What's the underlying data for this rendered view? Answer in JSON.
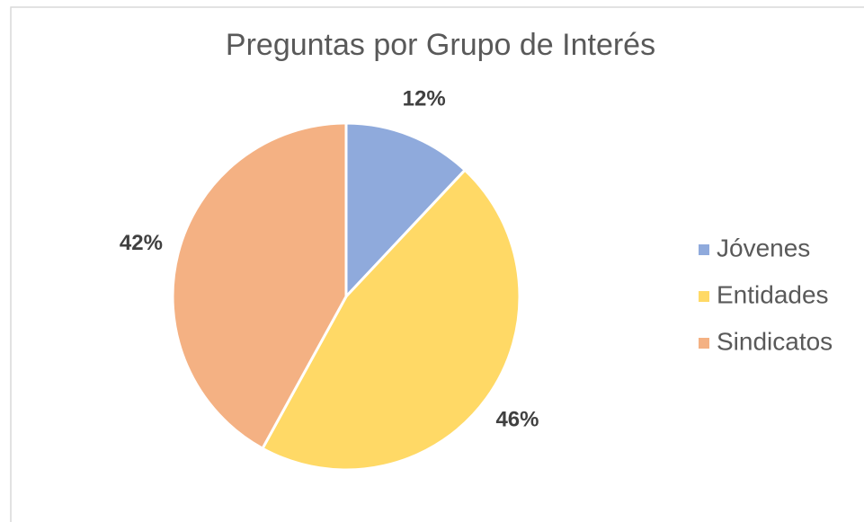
{
  "chart_data": {
    "type": "pie",
    "title": "Preguntas por Grupo de Interés",
    "categories": [
      "Jóvenes",
      "Entidades",
      "Sindicatos"
    ],
    "values": [
      12,
      46,
      42
    ],
    "value_labels": [
      "12%",
      "46%",
      "42%"
    ],
    "colors": [
      "#8FAADC",
      "#FFD966",
      "#F4B183"
    ],
    "legend": "right"
  }
}
